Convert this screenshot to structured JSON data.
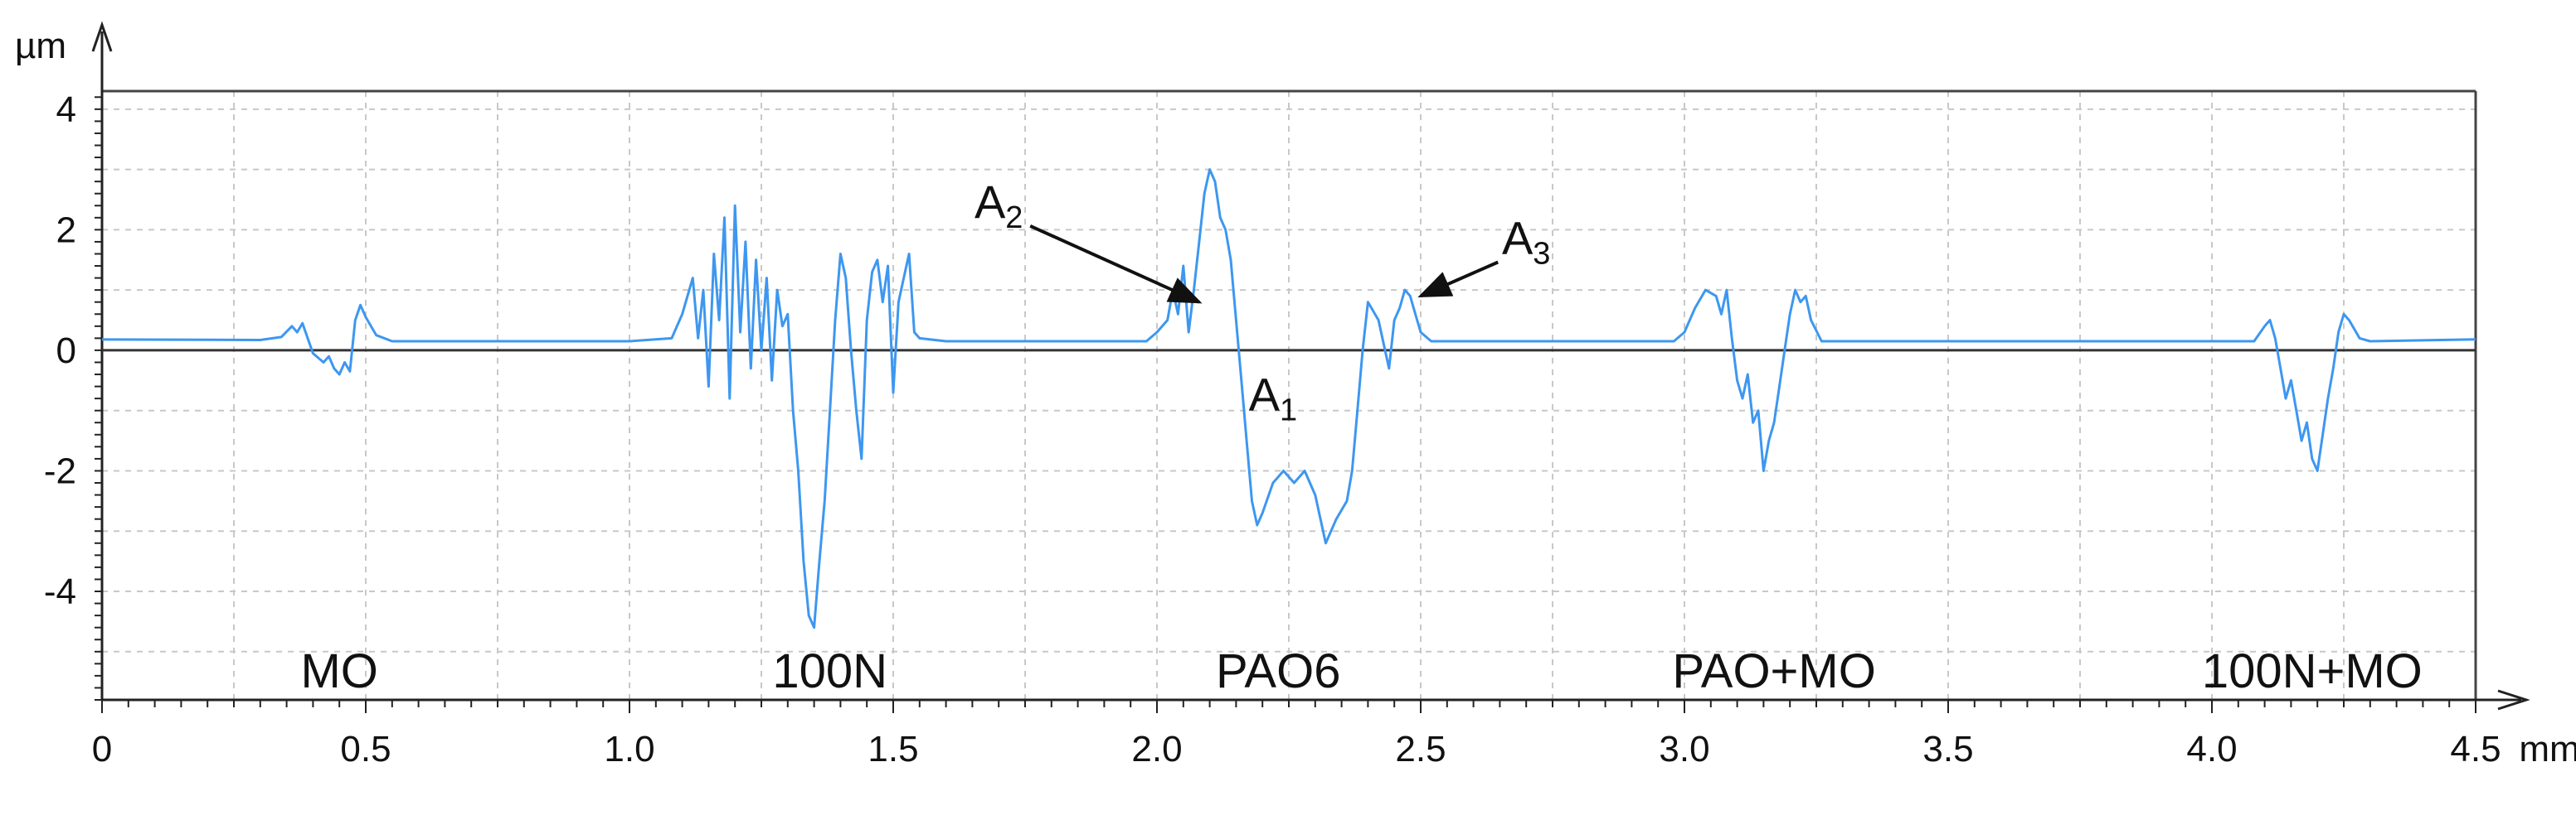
{
  "chart_data": {
    "type": "line",
    "y_unit": "µm",
    "x_unit": "mm",
    "xlim": [
      0,
      4.5
    ],
    "ylim": [
      -5.8,
      4.3
    ],
    "grid": true,
    "x_ticks": [
      {
        "value": 0,
        "label": "0"
      },
      {
        "value": 0.5,
        "label": "0.5"
      },
      {
        "value": 1.0,
        "label": "1.0"
      },
      {
        "value": 1.5,
        "label": "1.5"
      },
      {
        "value": 2.0,
        "label": "2.0"
      },
      {
        "value": 2.5,
        "label": "2.5"
      },
      {
        "value": 3.0,
        "label": "3.0"
      },
      {
        "value": 3.5,
        "label": "3.5"
      },
      {
        "value": 4.0,
        "label": "4.0"
      },
      {
        "value": 4.5,
        "label": "4.5"
      }
    ],
    "y_ticks": [
      {
        "value": 4,
        "label": "4"
      },
      {
        "value": 2,
        "label": "2"
      },
      {
        "value": 0,
        "label": "0"
      },
      {
        "value": -2,
        "label": "-2"
      },
      {
        "value": -4,
        "label": "-4"
      }
    ],
    "regions": [
      {
        "label": "MO",
        "x": 0.45
      },
      {
        "label": "100N",
        "x": 1.38
      },
      {
        "label": "PAO6",
        "x": 2.23
      },
      {
        "label": "PAO+MO",
        "x": 3.17
      },
      {
        "label": "100N+MO",
        "x": 4.19
      }
    ],
    "annotations": [
      {
        "main": "A",
        "sub": "1",
        "x": 2.22,
        "y": -1.0
      },
      {
        "main": "A",
        "sub": "2",
        "x": 1.7,
        "y": 2.2,
        "arrow_to": [
          2.08,
          0.8
        ]
      },
      {
        "main": "A",
        "sub": "3",
        "x": 2.7,
        "y": 1.6,
        "arrow_to": [
          2.5,
          0.9
        ]
      }
    ],
    "series": [
      {
        "color": "#3d97f0",
        "points": [
          [
            0.0,
            0.18
          ],
          [
            0.3,
            0.17
          ],
          [
            0.34,
            0.22
          ],
          [
            0.36,
            0.4
          ],
          [
            0.37,
            0.3
          ],
          [
            0.38,
            0.45
          ],
          [
            0.39,
            0.2
          ],
          [
            0.4,
            -0.05
          ],
          [
            0.42,
            -0.2
          ],
          [
            0.43,
            -0.1
          ],
          [
            0.44,
            -0.3
          ],
          [
            0.45,
            -0.4
          ],
          [
            0.46,
            -0.2
          ],
          [
            0.47,
            -0.35
          ],
          [
            0.48,
            0.5
          ],
          [
            0.49,
            0.75
          ],
          [
            0.5,
            0.55
          ],
          [
            0.52,
            0.25
          ],
          [
            0.55,
            0.15
          ],
          [
            1.0,
            0.15
          ],
          [
            1.08,
            0.2
          ],
          [
            1.1,
            0.6
          ],
          [
            1.12,
            1.2
          ],
          [
            1.13,
            0.2
          ],
          [
            1.14,
            1.0
          ],
          [
            1.15,
            -0.6
          ],
          [
            1.16,
            1.6
          ],
          [
            1.17,
            0.5
          ],
          [
            1.18,
            2.2
          ],
          [
            1.19,
            -0.8
          ],
          [
            1.2,
            2.4
          ],
          [
            1.21,
            0.3
          ],
          [
            1.22,
            1.8
          ],
          [
            1.23,
            -0.3
          ],
          [
            1.24,
            1.5
          ],
          [
            1.25,
            0.0
          ],
          [
            1.26,
            1.2
          ],
          [
            1.27,
            -0.5
          ],
          [
            1.28,
            1.0
          ],
          [
            1.29,
            0.4
          ],
          [
            1.3,
            0.6
          ],
          [
            1.31,
            -1.0
          ],
          [
            1.32,
            -2.0
          ],
          [
            1.33,
            -3.5
          ],
          [
            1.34,
            -4.4
          ],
          [
            1.35,
            -4.6
          ],
          [
            1.36,
            -3.5
          ],
          [
            1.37,
            -2.5
          ],
          [
            1.38,
            -1.0
          ],
          [
            1.39,
            0.5
          ],
          [
            1.4,
            1.6
          ],
          [
            1.41,
            1.2
          ],
          [
            1.42,
            0.0
          ],
          [
            1.43,
            -1.0
          ],
          [
            1.44,
            -1.8
          ],
          [
            1.45,
            0.5
          ],
          [
            1.46,
            1.3
          ],
          [
            1.47,
            1.5
          ],
          [
            1.48,
            0.8
          ],
          [
            1.49,
            1.4
          ],
          [
            1.5,
            -0.7
          ],
          [
            1.51,
            0.8
          ],
          [
            1.52,
            1.2
          ],
          [
            1.53,
            1.6
          ],
          [
            1.54,
            0.3
          ],
          [
            1.55,
            0.2
          ],
          [
            1.6,
            0.15
          ],
          [
            1.98,
            0.15
          ],
          [
            2.0,
            0.3
          ],
          [
            2.02,
            0.5
          ],
          [
            2.03,
            1.0
          ],
          [
            2.04,
            0.6
          ],
          [
            2.05,
            1.4
          ],
          [
            2.06,
            0.3
          ],
          [
            2.07,
            1.0
          ],
          [
            2.08,
            1.8
          ],
          [
            2.09,
            2.6
          ],
          [
            2.1,
            3.0
          ],
          [
            2.11,
            2.8
          ],
          [
            2.12,
            2.2
          ],
          [
            2.13,
            2.0
          ],
          [
            2.14,
            1.5
          ],
          [
            2.15,
            0.5
          ],
          [
            2.16,
            -0.5
          ],
          [
            2.17,
            -1.5
          ],
          [
            2.18,
            -2.5
          ],
          [
            2.19,
            -2.9
          ],
          [
            2.2,
            -2.7
          ],
          [
            2.22,
            -2.2
          ],
          [
            2.24,
            -2.0
          ],
          [
            2.26,
            -2.2
          ],
          [
            2.28,
            -2.0
          ],
          [
            2.3,
            -2.4
          ],
          [
            2.32,
            -3.2
          ],
          [
            2.34,
            -2.8
          ],
          [
            2.36,
            -2.5
          ],
          [
            2.37,
            -2.0
          ],
          [
            2.38,
            -1.0
          ],
          [
            2.39,
            0.0
          ],
          [
            2.4,
            0.8
          ],
          [
            2.42,
            0.5
          ],
          [
            2.44,
            -0.3
          ],
          [
            2.45,
            0.5
          ],
          [
            2.46,
            0.7
          ],
          [
            2.47,
            1.0
          ],
          [
            2.48,
            0.9
          ],
          [
            2.49,
            0.6
          ],
          [
            2.5,
            0.3
          ],
          [
            2.52,
            0.15
          ],
          [
            2.98,
            0.15
          ],
          [
            3.0,
            0.3
          ],
          [
            3.02,
            0.7
          ],
          [
            3.04,
            1.0
          ],
          [
            3.06,
            0.9
          ],
          [
            3.07,
            0.6
          ],
          [
            3.08,
            1.0
          ],
          [
            3.09,
            0.2
          ],
          [
            3.1,
            -0.5
          ],
          [
            3.11,
            -0.8
          ],
          [
            3.12,
            -0.4
          ],
          [
            3.13,
            -1.2
          ],
          [
            3.14,
            -1.0
          ],
          [
            3.15,
            -2.0
          ],
          [
            3.16,
            -1.5
          ],
          [
            3.17,
            -1.2
          ],
          [
            3.18,
            -0.6
          ],
          [
            3.19,
            0.0
          ],
          [
            3.2,
            0.6
          ],
          [
            3.21,
            1.0
          ],
          [
            3.22,
            0.8
          ],
          [
            3.23,
            0.9
          ],
          [
            3.24,
            0.5
          ],
          [
            3.26,
            0.15
          ],
          [
            4.08,
            0.15
          ],
          [
            4.1,
            0.4
          ],
          [
            4.11,
            0.5
          ],
          [
            4.12,
            0.2
          ],
          [
            4.13,
            -0.3
          ],
          [
            4.14,
            -0.8
          ],
          [
            4.15,
            -0.5
          ],
          [
            4.16,
            -1.0
          ],
          [
            4.17,
            -1.5
          ],
          [
            4.18,
            -1.2
          ],
          [
            4.19,
            -1.8
          ],
          [
            4.2,
            -2.0
          ],
          [
            4.21,
            -1.4
          ],
          [
            4.22,
            -0.8
          ],
          [
            4.23,
            -0.3
          ],
          [
            4.24,
            0.3
          ],
          [
            4.25,
            0.6
          ],
          [
            4.26,
            0.5
          ],
          [
            4.28,
            0.2
          ],
          [
            4.3,
            0.15
          ],
          [
            4.5,
            0.18
          ]
        ]
      }
    ]
  }
}
